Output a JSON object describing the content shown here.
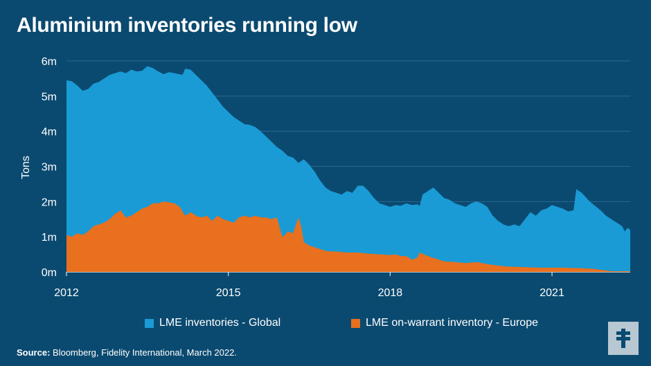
{
  "title": "Aluminium inventories running low",
  "source_label": "Source:",
  "source_text": "Bloomberg, Fidelity International, March 2022.",
  "colors": {
    "background": "#0b4a70",
    "global": "#1a9bd6",
    "europe": "#e8701e",
    "grid": "#2a6a90"
  },
  "logo_icon": "fidelity-f-logo-icon",
  "chart_data": {
    "type": "area",
    "title": "Aluminium inventories running low",
    "xlabel": "",
    "ylabel": "Tons",
    "ylim": [
      0,
      6
    ],
    "y_ticks": [
      "0m",
      "1m",
      "2m",
      "3m",
      "4m",
      "5m",
      "6m"
    ],
    "x_ticks": [
      {
        "label": "2012",
        "year": 2012
      },
      {
        "label": "2015",
        "year": 2015
      },
      {
        "label": "2018",
        "year": 2018
      },
      {
        "label": "2021",
        "year": 2021
      }
    ],
    "xlim": [
      2012,
      2022
    ],
    "grid": true,
    "legend_position": "bottom",
    "series": [
      {
        "name": "LME inventories - Global",
        "color": "#1a9bd6",
        "points": [
          [
            2012.0,
            5.45
          ],
          [
            2012.1,
            5.42
          ],
          [
            2012.2,
            5.3
          ],
          [
            2012.3,
            5.15
          ],
          [
            2012.4,
            5.2
          ],
          [
            2012.5,
            5.35
          ],
          [
            2012.6,
            5.4
          ],
          [
            2012.7,
            5.5
          ],
          [
            2012.8,
            5.6
          ],
          [
            2012.9,
            5.65
          ],
          [
            2013.0,
            5.7
          ],
          [
            2013.1,
            5.65
          ],
          [
            2013.2,
            5.75
          ],
          [
            2013.3,
            5.7
          ],
          [
            2013.4,
            5.72
          ],
          [
            2013.5,
            5.85
          ],
          [
            2013.6,
            5.8
          ],
          [
            2013.7,
            5.7
          ],
          [
            2013.8,
            5.62
          ],
          [
            2013.9,
            5.68
          ],
          [
            2014.0,
            5.65
          ],
          [
            2014.1,
            5.62
          ],
          [
            2014.15,
            5.6
          ],
          [
            2014.2,
            5.78
          ],
          [
            2014.3,
            5.75
          ],
          [
            2014.4,
            5.6
          ],
          [
            2014.5,
            5.45
          ],
          [
            2014.6,
            5.3
          ],
          [
            2014.7,
            5.1
          ],
          [
            2014.8,
            4.9
          ],
          [
            2014.9,
            4.7
          ],
          [
            2015.0,
            4.55
          ],
          [
            2015.1,
            4.4
          ],
          [
            2015.2,
            4.3
          ],
          [
            2015.3,
            4.2
          ],
          [
            2015.4,
            4.18
          ],
          [
            2015.5,
            4.12
          ],
          [
            2015.6,
            4.0
          ],
          [
            2015.7,
            3.85
          ],
          [
            2015.8,
            3.7
          ],
          [
            2015.9,
            3.55
          ],
          [
            2016.0,
            3.45
          ],
          [
            2016.1,
            3.3
          ],
          [
            2016.2,
            3.25
          ],
          [
            2016.3,
            3.1
          ],
          [
            2016.4,
            3.2
          ],
          [
            2016.5,
            3.05
          ],
          [
            2016.6,
            2.85
          ],
          [
            2016.7,
            2.6
          ],
          [
            2016.8,
            2.4
          ],
          [
            2016.9,
            2.3
          ],
          [
            2017.0,
            2.25
          ],
          [
            2017.1,
            2.2
          ],
          [
            2017.2,
            2.3
          ],
          [
            2017.3,
            2.25
          ],
          [
            2017.4,
            2.45
          ],
          [
            2017.5,
            2.45
          ],
          [
            2017.6,
            2.3
          ],
          [
            2017.7,
            2.1
          ],
          [
            2017.8,
            1.95
          ],
          [
            2017.9,
            1.9
          ],
          [
            2018.0,
            1.85
          ],
          [
            2018.1,
            1.9
          ],
          [
            2018.2,
            1.88
          ],
          [
            2018.3,
            1.95
          ],
          [
            2018.4,
            1.9
          ],
          [
            2018.5,
            1.92
          ],
          [
            2018.55,
            1.88
          ],
          [
            2018.6,
            2.2
          ],
          [
            2018.7,
            2.3
          ],
          [
            2018.8,
            2.4
          ],
          [
            2018.9,
            2.25
          ],
          [
            2019.0,
            2.1
          ],
          [
            2019.1,
            2.05
          ],
          [
            2019.2,
            1.95
          ],
          [
            2019.3,
            1.9
          ],
          [
            2019.4,
            1.85
          ],
          [
            2019.5,
            1.95
          ],
          [
            2019.6,
            2.0
          ],
          [
            2019.7,
            1.95
          ],
          [
            2019.8,
            1.85
          ],
          [
            2019.9,
            1.6
          ],
          [
            2020.0,
            1.45
          ],
          [
            2020.1,
            1.35
          ],
          [
            2020.2,
            1.3
          ],
          [
            2020.3,
            1.35
          ],
          [
            2020.4,
            1.3
          ],
          [
            2020.5,
            1.5
          ],
          [
            2020.6,
            1.7
          ],
          [
            2020.7,
            1.6
          ],
          [
            2020.8,
            1.75
          ],
          [
            2020.9,
            1.8
          ],
          [
            2021.0,
            1.9
          ],
          [
            2021.1,
            1.85
          ],
          [
            2021.2,
            1.8
          ],
          [
            2021.3,
            1.72
          ],
          [
            2021.4,
            1.75
          ],
          [
            2021.45,
            2.35
          ],
          [
            2021.55,
            2.25
          ],
          [
            2021.7,
            2.0
          ],
          [
            2021.9,
            1.75
          ],
          [
            2022.0,
            1.6
          ],
          [
            2022.1,
            1.5
          ],
          [
            2022.2,
            1.4
          ],
          [
            2022.3,
            1.3
          ],
          [
            2022.35,
            1.15
          ],
          [
            2022.4,
            1.25
          ],
          [
            2022.45,
            1.2
          ]
        ]
      },
      {
        "name": "LME on-warrant inventory - Europe",
        "color": "#e8701e",
        "points": [
          [
            2012.0,
            1.05
          ],
          [
            2012.1,
            1.0
          ],
          [
            2012.2,
            1.1
          ],
          [
            2012.3,
            1.05
          ],
          [
            2012.4,
            1.15
          ],
          [
            2012.5,
            1.3
          ],
          [
            2012.6,
            1.35
          ],
          [
            2012.7,
            1.4
          ],
          [
            2012.8,
            1.5
          ],
          [
            2012.9,
            1.65
          ],
          [
            2013.0,
            1.75
          ],
          [
            2013.1,
            1.55
          ],
          [
            2013.2,
            1.6
          ],
          [
            2013.3,
            1.7
          ],
          [
            2013.4,
            1.8
          ],
          [
            2013.5,
            1.85
          ],
          [
            2013.6,
            1.95
          ],
          [
            2013.7,
            1.95
          ],
          [
            2013.8,
            2.0
          ],
          [
            2013.9,
            1.98
          ],
          [
            2014.0,
            1.95
          ],
          [
            2014.1,
            1.85
          ],
          [
            2014.2,
            1.6
          ],
          [
            2014.3,
            1.7
          ],
          [
            2014.4,
            1.6
          ],
          [
            2014.5,
            1.55
          ],
          [
            2014.6,
            1.6
          ],
          [
            2014.7,
            1.45
          ],
          [
            2014.8,
            1.6
          ],
          [
            2014.9,
            1.5
          ],
          [
            2015.0,
            1.45
          ],
          [
            2015.1,
            1.4
          ],
          [
            2015.2,
            1.55
          ],
          [
            2015.3,
            1.6
          ],
          [
            2015.4,
            1.55
          ],
          [
            2015.5,
            1.6
          ],
          [
            2015.6,
            1.55
          ],
          [
            2015.7,
            1.55
          ],
          [
            2015.8,
            1.5
          ],
          [
            2015.9,
            1.55
          ],
          [
            2016.0,
            1.0
          ],
          [
            2016.05,
            1.05
          ],
          [
            2016.1,
            1.15
          ],
          [
            2016.2,
            1.1
          ],
          [
            2016.3,
            1.55
          ],
          [
            2016.35,
            1.3
          ],
          [
            2016.4,
            0.85
          ],
          [
            2016.5,
            0.75
          ],
          [
            2016.6,
            0.7
          ],
          [
            2016.7,
            0.65
          ],
          [
            2016.8,
            0.6
          ],
          [
            2016.9,
            0.58
          ],
          [
            2017.0,
            0.58
          ],
          [
            2017.2,
            0.55
          ],
          [
            2017.4,
            0.55
          ],
          [
            2017.6,
            0.52
          ],
          [
            2017.8,
            0.5
          ],
          [
            2018.0,
            0.48
          ],
          [
            2018.1,
            0.5
          ],
          [
            2018.2,
            0.45
          ],
          [
            2018.3,
            0.45
          ],
          [
            2018.4,
            0.35
          ],
          [
            2018.5,
            0.4
          ],
          [
            2018.55,
            0.55
          ],
          [
            2018.7,
            0.45
          ],
          [
            2018.9,
            0.35
          ],
          [
            2019.0,
            0.3
          ],
          [
            2019.2,
            0.28
          ],
          [
            2019.4,
            0.25
          ],
          [
            2019.6,
            0.28
          ],
          [
            2019.8,
            0.22
          ],
          [
            2020.0,
            0.18
          ],
          [
            2020.2,
            0.15
          ],
          [
            2020.4,
            0.14
          ],
          [
            2020.6,
            0.13
          ],
          [
            2020.8,
            0.12
          ],
          [
            2021.0,
            0.12
          ],
          [
            2021.2,
            0.12
          ],
          [
            2021.4,
            0.11
          ],
          [
            2021.6,
            0.1
          ],
          [
            2021.8,
            0.08
          ],
          [
            2021.95,
            0.05
          ],
          [
            2022.1,
            0.02
          ],
          [
            2022.3,
            0.02
          ],
          [
            2022.45,
            0.02
          ]
        ]
      }
    ]
  }
}
